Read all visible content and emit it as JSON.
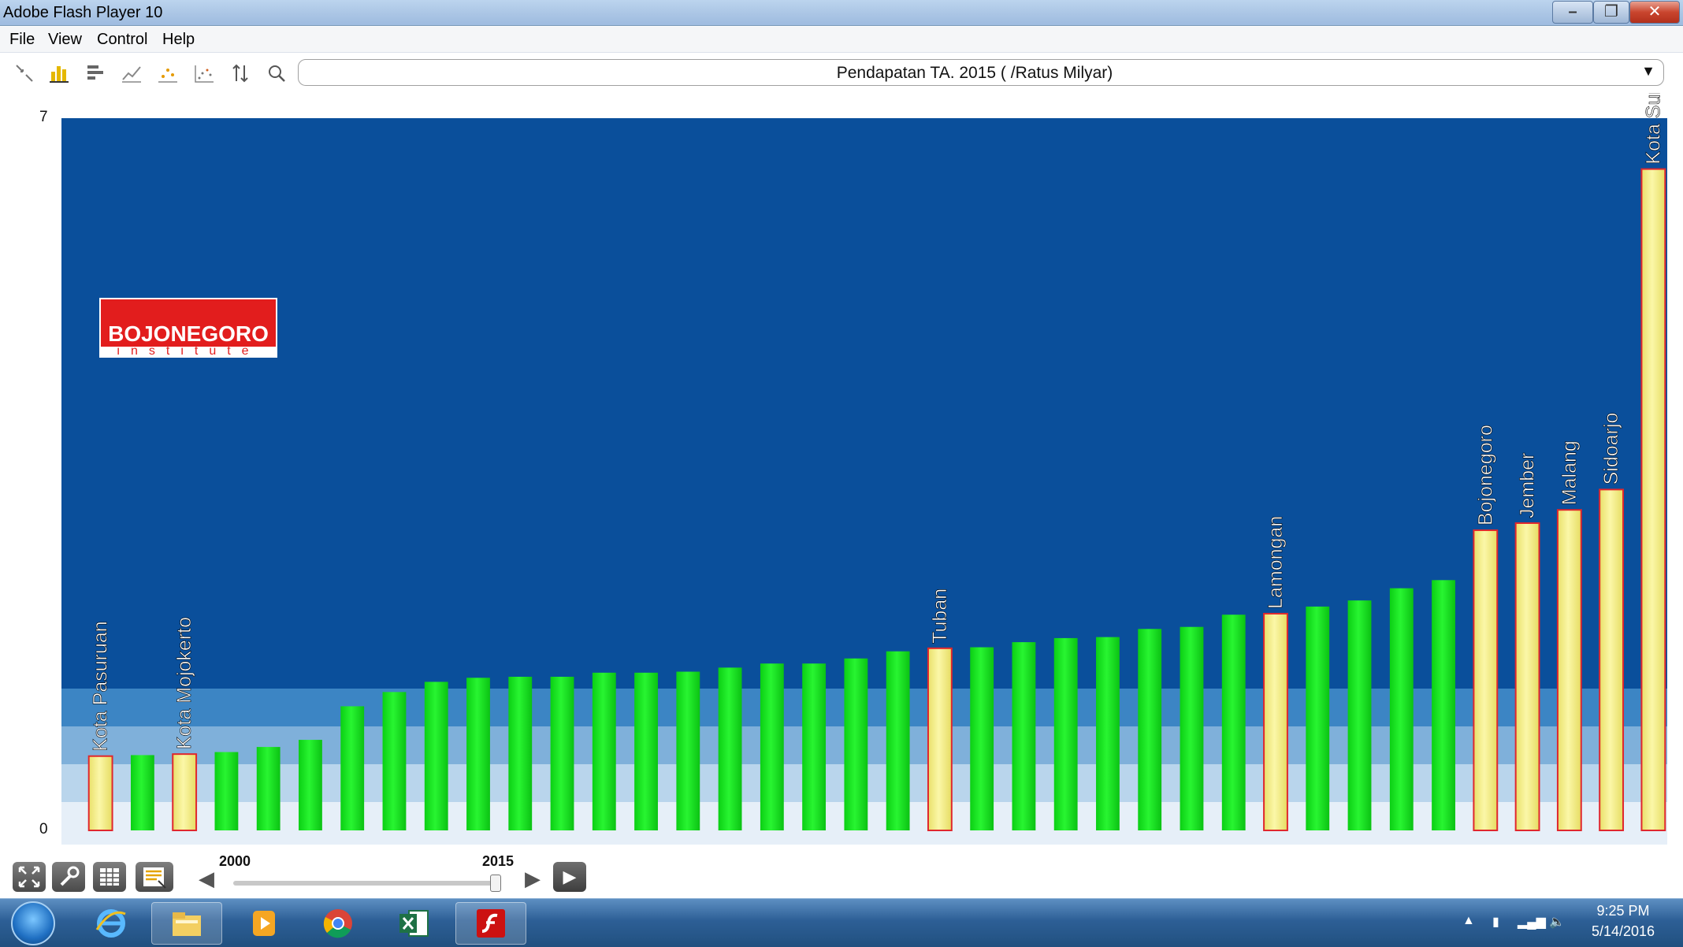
{
  "window": {
    "title": "Adobe Flash Player 10",
    "minimize": "–",
    "maximize": "❐",
    "close": "✕"
  },
  "menu": [
    "File",
    "View",
    "Control",
    "Help"
  ],
  "toolbar": {
    "icons": [
      "select-icon",
      "bar-chart-icon",
      "horizontal-bar-icon",
      "line-chart-icon",
      "scatter-icon",
      "scatter-dots-icon",
      "sort-icon",
      "search-icon"
    ],
    "indicator": "Pendapatan TA. 2015 ( /Ratus Milyar)",
    "dropdown_arrow": "▼"
  },
  "logo": {
    "main": "BOJONEGORO",
    "sub": "institute"
  },
  "colors": {
    "plot_bg": "#0a4f9b",
    "bar_green": "#16e81f",
    "bar_highlight": "#f3ec7e",
    "highlight_border": "#e0272d"
  },
  "chart_data": {
    "type": "bar",
    "title": "Pendapatan TA. 2015 ( /Ratus Milyar)",
    "ylim": [
      0,
      7
    ],
    "y_ticks": [
      "0",
      "7"
    ],
    "grid": false,
    "values": [
      0.73,
      0.74,
      0.75,
      0.77,
      0.82,
      0.89,
      1.22,
      1.36,
      1.46,
      1.5,
      1.51,
      1.51,
      1.55,
      1.55,
      1.56,
      1.6,
      1.64,
      1.64,
      1.69,
      1.76,
      1.79,
      1.8,
      1.85,
      1.89,
      1.9,
      1.98,
      2.0,
      2.12,
      2.13,
      2.2,
      2.26,
      2.38,
      2.46,
      2.95,
      3.02,
      3.15,
      3.35,
      6.5
    ],
    "highlighted": [
      {
        "index": 0,
        "label": "Kota Pasuruan"
      },
      {
        "index": 2,
        "label": "Kota Mojokerto"
      },
      {
        "index": 20,
        "label": "Tuban"
      },
      {
        "index": 28,
        "label": "Lamongan"
      },
      {
        "index": 33,
        "label": "Bojonegoro"
      },
      {
        "index": 34,
        "label": "Jember"
      },
      {
        "index": 35,
        "label": "Malang"
      },
      {
        "index": 36,
        "label": "Sidoarjo"
      },
      {
        "index": 37,
        "label": "Kota Surabaya"
      }
    ]
  },
  "playback": {
    "buttons": [
      "fullscreen-icon",
      "settings-icon",
      "table-icon",
      "notes-icon"
    ],
    "year_start": "2000",
    "year_end": "2015",
    "current_year_position": 1.0,
    "play": "▶"
  },
  "taskbar": {
    "apps": [
      "explorer-icon",
      "internet-explorer-icon",
      "file-manager-icon",
      "media-player-icon",
      "chrome-icon",
      "excel-icon",
      "flash-icon"
    ],
    "time": "9:25 PM",
    "date": "5/14/2016"
  }
}
